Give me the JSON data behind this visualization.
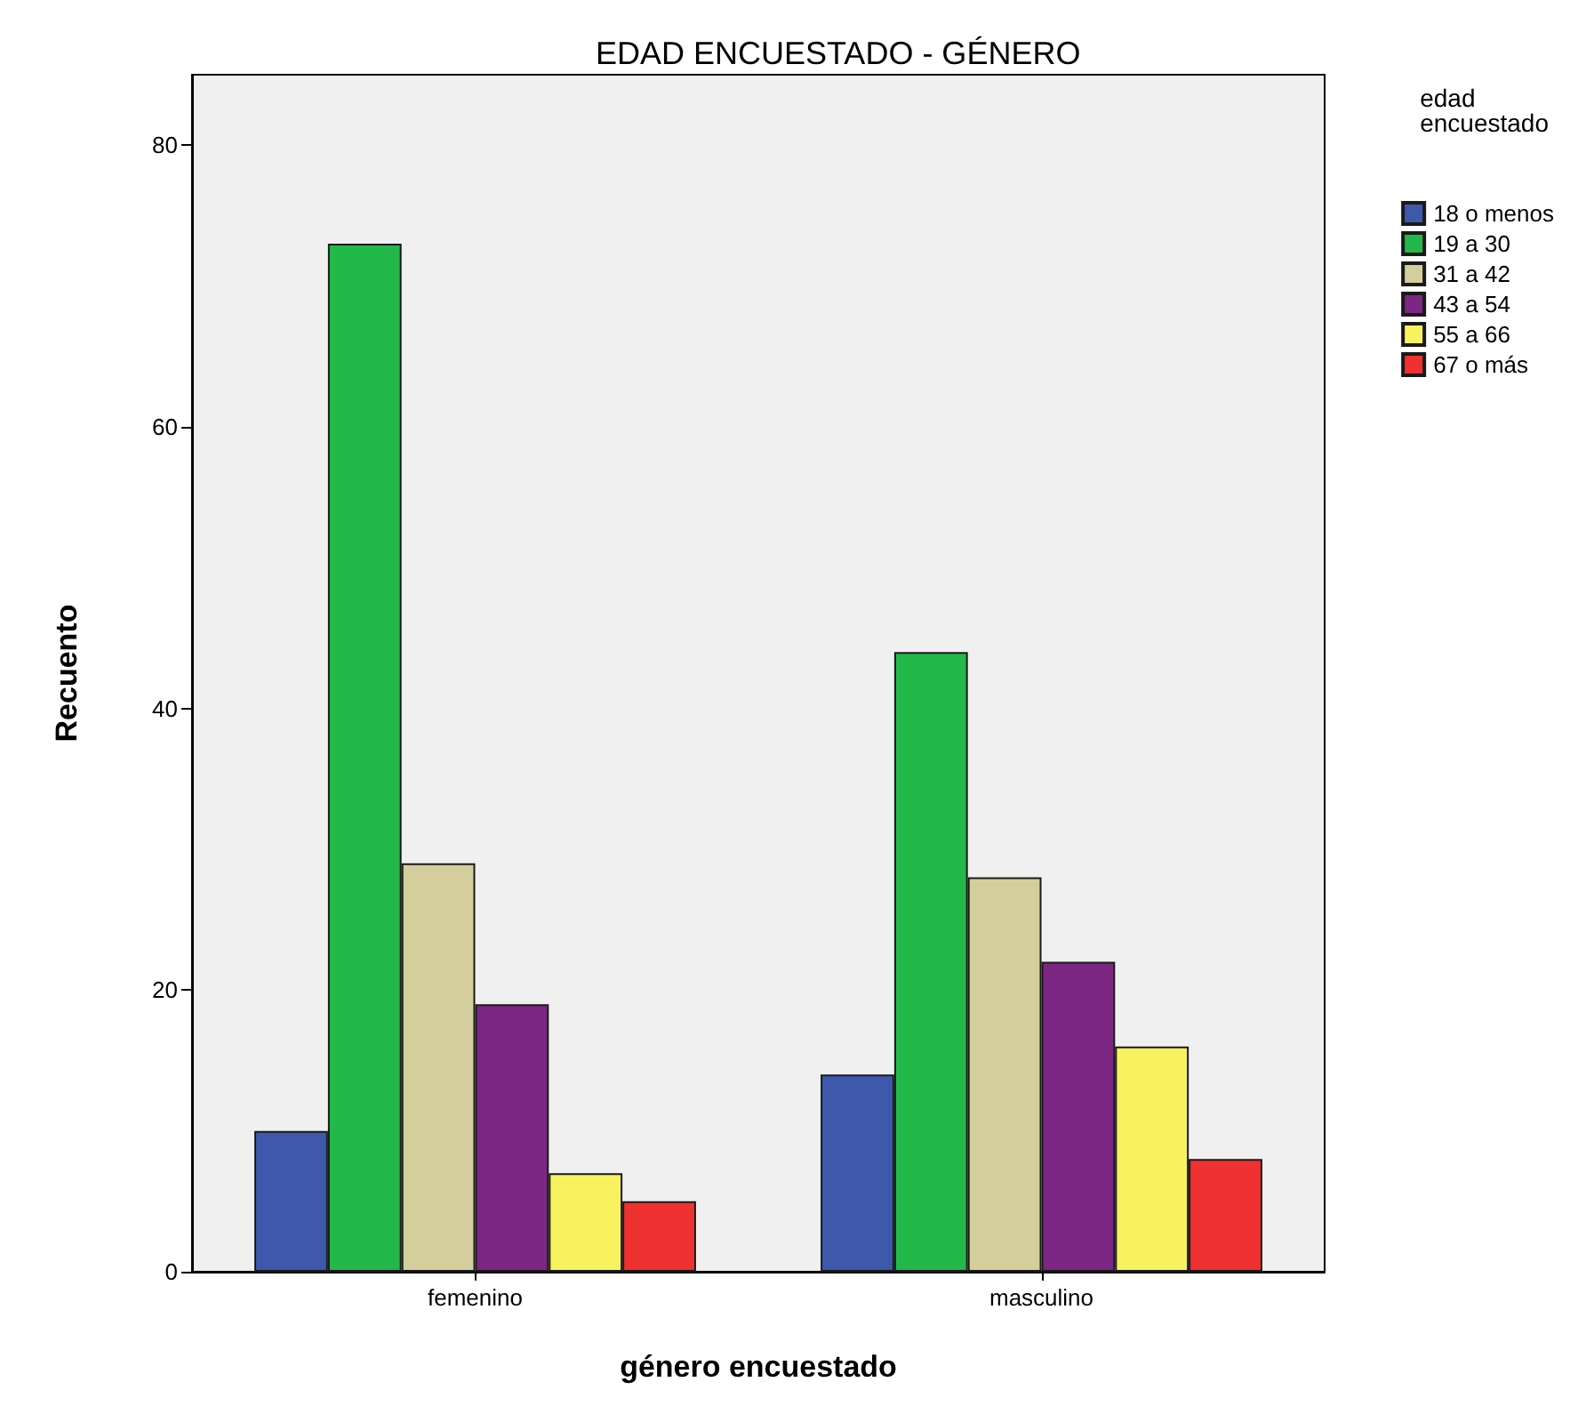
{
  "chart_data": {
    "type": "bar",
    "title": "EDAD ENCUESTADO - GÉNERO",
    "xlabel": "género encuestado",
    "ylabel": "Recuento",
    "legend_title": "edad\nencuestado",
    "categories": [
      "femenino",
      "masculino"
    ],
    "series": [
      {
        "name": "18 o menos",
        "color": "#3e58ac",
        "values": [
          10,
          14
        ]
      },
      {
        "name": "19 a 30",
        "color": "#23b84a",
        "values": [
          73,
          44
        ]
      },
      {
        "name": "31 a 42",
        "color": "#d3ce9b",
        "values": [
          29,
          28
        ]
      },
      {
        "name": "43 a 54",
        "color": "#7b2783",
        "values": [
          19,
          22
        ]
      },
      {
        "name": "55 a 66",
        "color": "#f8f25e",
        "values": [
          7,
          16
        ]
      },
      {
        "name": "67 o más",
        "color": "#ef3131",
        "values": [
          5,
          8
        ]
      }
    ],
    "ylim": [
      0,
      85
    ],
    "yticks": [
      0,
      20,
      40,
      60,
      80
    ],
    "grid": false,
    "legend": "top right"
  }
}
